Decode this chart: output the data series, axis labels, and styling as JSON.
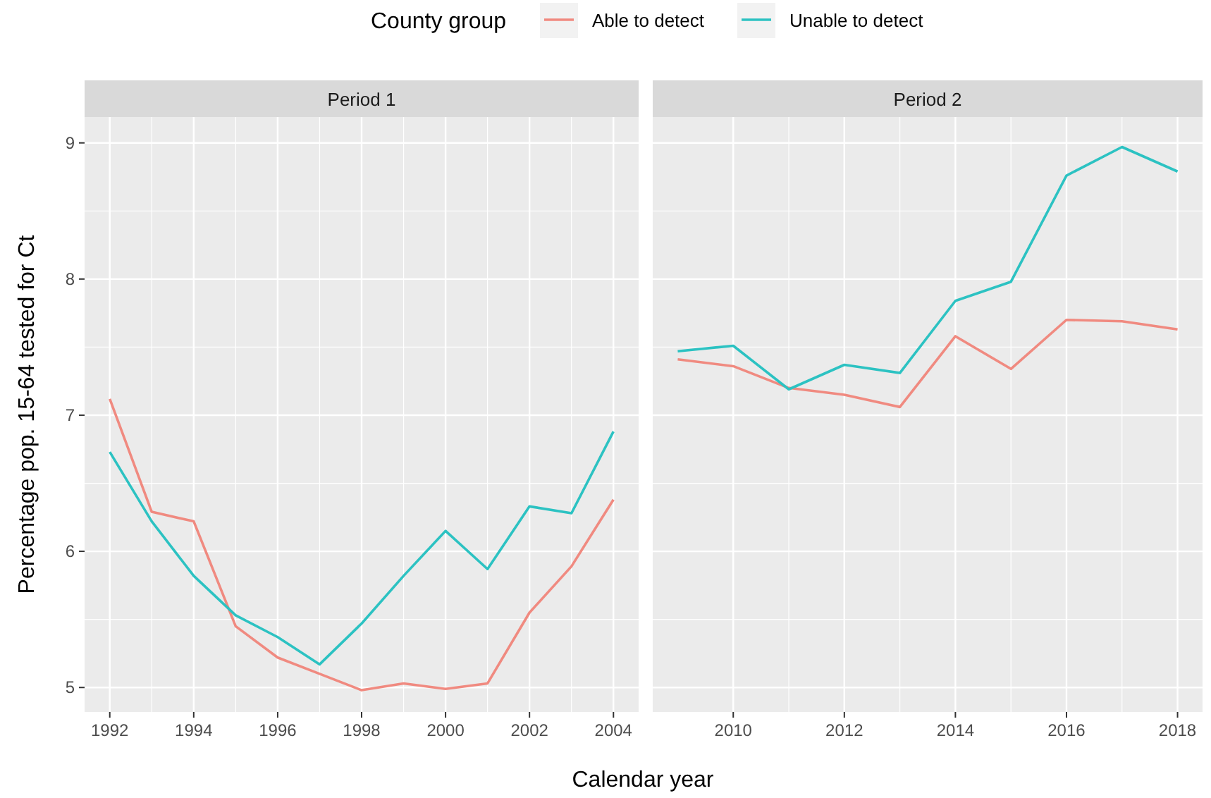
{
  "chart_data": [
    {
      "type": "line",
      "title": "Period 1",
      "xlabel": "Calendar year",
      "ylabel": "Percentage pop. 15-64 tested for Ct",
      "legend_title": "County group",
      "legend": "top",
      "grid": true,
      "line_style": "solid",
      "x": [
        1992,
        1993,
        1994,
        1995,
        1996,
        1997,
        1998,
        1999,
        2000,
        2001,
        2002,
        2003,
        2004
      ],
      "xlim": [
        1991.4,
        2004.6
      ],
      "xticks": [
        1992,
        1994,
        1996,
        1998,
        2000,
        2002,
        2004
      ],
      "ylim": [
        4.82,
        9.19
      ],
      "yticks": [
        5,
        6,
        7,
        8,
        9
      ],
      "series": [
        {
          "name": "Able to detect",
          "color": "#f08a80",
          "values": [
            7.12,
            6.29,
            6.22,
            5.45,
            5.22,
            5.1,
            4.98,
            5.03,
            4.99,
            5.03,
            5.55,
            5.89,
            6.38
          ]
        },
        {
          "name": "Unable to detect",
          "color": "#2cc2c2",
          "values": [
            6.73,
            6.22,
            5.82,
            5.53,
            5.37,
            5.17,
            5.47,
            5.82,
            6.15,
            5.87,
            6.33,
            6.28,
            6.88
          ]
        }
      ]
    },
    {
      "type": "line",
      "title": "Period 2",
      "grid": true,
      "line_style": "solid",
      "tick_labels": "x",
      "x": [
        2009,
        2010,
        2011,
        2012,
        2013,
        2014,
        2015,
        2016,
        2017,
        2018
      ],
      "xlim": [
        2008.55,
        2018.45
      ],
      "xticks": [
        2010,
        2012,
        2014,
        2016,
        2018
      ],
      "ylim": [
        4.82,
        9.19
      ],
      "yticks": [
        5,
        6,
        7,
        8,
        9
      ],
      "series": [
        {
          "color": "#f08a80",
          "values": [
            7.41,
            7.36,
            7.2,
            7.15,
            7.06,
            7.58,
            7.34,
            7.7,
            7.69,
            7.63
          ]
        },
        {
          "color": "#2cc2c2",
          "values": [
            7.47,
            7.51,
            7.19,
            7.37,
            7.31,
            7.84,
            7.98,
            8.76,
            8.97,
            8.79
          ]
        }
      ]
    }
  ]
}
